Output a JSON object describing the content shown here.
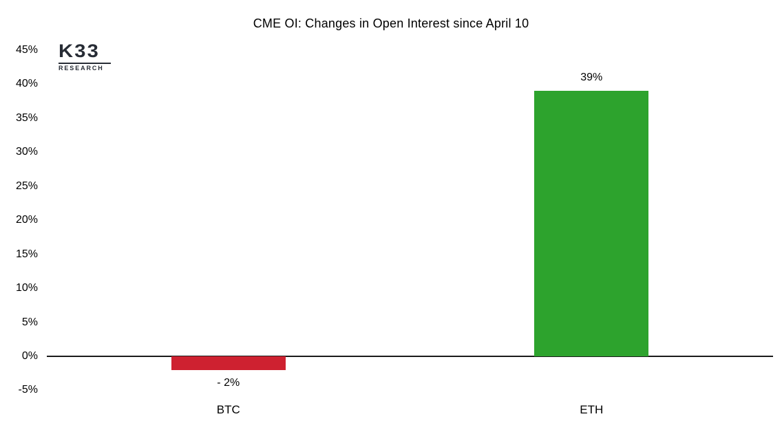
{
  "logo": {
    "name": "K33 Research",
    "text": "K33",
    "subtext": "RESEARCH",
    "color": "#272c35"
  },
  "colors": {
    "background": "#ffffff",
    "text": "#000000",
    "axis_line": "#1a1a1a",
    "btc_bar": "#ce2130",
    "eth_bar": "#2da32d"
  },
  "chart_data": {
    "type": "bar",
    "title": "CME OI: Changes in Open Interest since April 10",
    "categories": [
      "BTC",
      "ETH"
    ],
    "values": [
      -2,
      39
    ],
    "bars": [
      {
        "category": "BTC",
        "value": -2,
        "value_label": "- 2%",
        "color": "#ce2130"
      },
      {
        "category": "ETH",
        "value": 39,
        "value_label": "39%",
        "color": "#2da32d"
      }
    ],
    "xlabel": "",
    "ylabel": "",
    "ylim": [
      -5,
      45
    ],
    "ytick_step": 5,
    "yticks": [
      {
        "value": 45,
        "label": "45%"
      },
      {
        "value": 40,
        "label": "40%"
      },
      {
        "value": 35,
        "label": "35%"
      },
      {
        "value": 30,
        "label": "30%"
      },
      {
        "value": 25,
        "label": "25%"
      },
      {
        "value": 20,
        "label": "20%"
      },
      {
        "value": 15,
        "label": "15%"
      },
      {
        "value": 10,
        "label": "10%"
      },
      {
        "value": 5,
        "label": "5%"
      },
      {
        "value": 0,
        "label": "0%"
      },
      {
        "value": -5,
        "label": "-5%"
      }
    ],
    "grid": false,
    "legend": "none",
    "baseline": 0
  }
}
